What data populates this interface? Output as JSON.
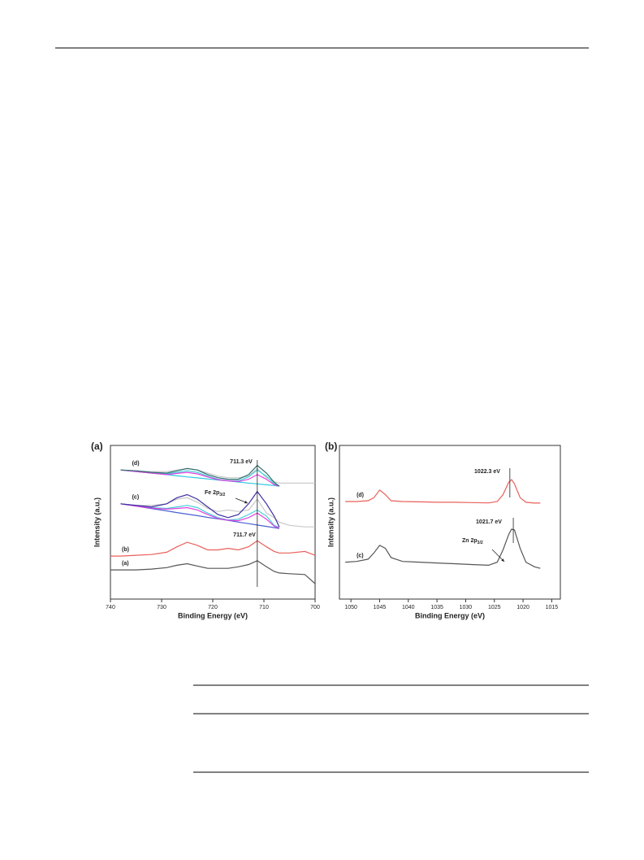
{
  "chart_data": [
    {
      "type": "line",
      "panel_label": "(a)",
      "x_label": "Binding Energy (eV)",
      "y_label": "Intensity (a.u.)",
      "xlim": [
        740,
        700
      ],
      "xticks": [
        740,
        730,
        720,
        710,
        700
      ],
      "ylim": [
        0,
        100
      ],
      "x": [
        740,
        738,
        735,
        732,
        729,
        727,
        725,
        723,
        721,
        719,
        717,
        715,
        713,
        711.3,
        709.5,
        708,
        707,
        705,
        702,
        700
      ],
      "series": [
        {
          "label": "(a)",
          "color": "#555555",
          "values": [
            19,
            19,
            19,
            19.5,
            20.5,
            22,
            23,
            21.5,
            20,
            20,
            20,
            21,
            22.5,
            25,
            21,
            18,
            17,
            16.5,
            16,
            10
          ]
        },
        {
          "label": "(b)",
          "color": "#e8605a",
          "values": [
            28,
            28,
            28.5,
            29,
            30.5,
            34,
            37,
            35,
            32,
            32,
            33,
            32,
            34,
            38,
            34,
            31,
            30,
            30,
            31,
            28.5
          ]
        },
        {
          "color": "#c8c8c8",
          "values": [
            null,
            62,
            61,
            61,
            62,
            65,
            66,
            63,
            59,
            57,
            58,
            57,
            58,
            65,
            56,
            53,
            50,
            48,
            47,
            47
          ]
        },
        {
          "color": "#4a60d0",
          "values": [
            null,
            62,
            60.5,
            58.9,
            57.4,
            56.3,
            55.3,
            54.3,
            53.2,
            52.2,
            51.2,
            50.1,
            49.1,
            48.2,
            47.3,
            46.5,
            46,
            null,
            null,
            null
          ]
        },
        {
          "color": "#40d0d8",
          "values": [
            null,
            62,
            60.5,
            59.5,
            59,
            60,
            61,
            59.5,
            56,
            53,
            51.5,
            52,
            55,
            58,
            54,
            48,
            46.5,
            null,
            null,
            null
          ]
        },
        {
          "color": "#e040e0",
          "values": [
            null,
            62,
            60.5,
            59.2,
            58.5,
            59,
            59.5,
            58,
            55,
            52.5,
            51.3,
            51,
            53,
            56,
            52,
            47.5,
            46.2,
            null,
            null,
            null
          ]
        },
        {
          "label": "(c)",
          "color": "#3a2fa0",
          "values": [
            null,
            62,
            61,
            60,
            62,
            66,
            68,
            65,
            60,
            55,
            53,
            55,
            62,
            70,
            62,
            54,
            47,
            null,
            null,
            null
          ]
        },
        {
          "color": "#c8c8c8",
          "values": [
            null,
            84,
            83.5,
            83,
            83,
            84,
            85,
            84,
            82,
            80,
            79,
            79,
            80,
            85,
            79,
            76.5,
            75.5,
            75.5,
            75.5,
            75.5
          ]
        },
        {
          "color": "#30c8e0",
          "values": [
            null,
            84,
            83,
            82,
            81,
            80.2,
            79.5,
            78.9,
            78.2,
            77.5,
            76.9,
            76.2,
            75.5,
            75,
            74.4,
            73.9,
            73.5,
            null,
            null,
            null
          ]
        },
        {
          "color": "#40d0d8",
          "values": [
            null,
            84,
            83,
            82,
            81.5,
            82.5,
            83.5,
            82.5,
            80,
            78,
            77,
            77,
            79.5,
            84,
            80,
            75,
            73.6,
            null,
            null,
            null
          ]
        },
        {
          "color": "#e040e0",
          "values": [
            null,
            84,
            83,
            82,
            81,
            81.8,
            82.5,
            81.5,
            79.5,
            77.7,
            77,
            76.5,
            78,
            81,
            78,
            74.5,
            73.5,
            null,
            null,
            null
          ]
        },
        {
          "label": "(d)",
          "color": "#2e6e70",
          "values": [
            null,
            84,
            83.5,
            82.5,
            82,
            83.5,
            85,
            84,
            81,
            79,
            78,
            78,
            81,
            87,
            82,
            76,
            73.5,
            null,
            null,
            null
          ]
        }
      ],
      "vlines": [
        711.3
      ],
      "annotations": [
        {
          "text": "711.3 eV"
        },
        {
          "text": "711.7 eV"
        },
        {
          "text": "Fe 2p",
          "sub": "3/2"
        }
      ]
    },
    {
      "type": "line",
      "panel_label": "(b)",
      "x_label": "Binding Energy (eV)",
      "y_label": "Intensity (a.u.)",
      "xlim": [
        1052,
        1013.5
      ],
      "xticks": [
        1050,
        1045,
        1040,
        1035,
        1030,
        1025,
        1020,
        1015
      ],
      "ylim": [
        0,
        100
      ],
      "x": [
        1051,
        1049,
        1047,
        1046,
        1045,
        1044,
        1043,
        1041,
        1038,
        1035,
        1032,
        1029,
        1026,
        1024.5,
        1023.5,
        1022.5,
        1022,
        1021.5,
        1020.5,
        1019.5,
        1018,
        1017
      ],
      "series": [
        {
          "label": "(d)",
          "color": "#e8605a",
          "values": [
            63.5,
            63.5,
            64,
            66,
            71,
            68,
            64,
            63.5,
            63.3,
            63,
            63,
            62.8,
            62.6,
            63.5,
            68,
            76,
            77.8,
            75,
            66,
            63,
            62.5,
            62.5
          ]
        },
        {
          "label": "(c)",
          "color": "#555555",
          "values": [
            24,
            24.5,
            26,
            30,
            35,
            33,
            27,
            24.5,
            24,
            23.5,
            23,
            22.5,
            22,
            24,
            32,
            42,
            45.5,
            45,
            33,
            24,
            21,
            20
          ]
        }
      ],
      "vlines": [
        1022.3,
        1021.7
      ],
      "annotations": [
        {
          "text": "1022.3 eV"
        },
        {
          "text": "1021.7 eV"
        },
        {
          "text": "Zn 2p",
          "sub": "3/2"
        }
      ]
    }
  ]
}
